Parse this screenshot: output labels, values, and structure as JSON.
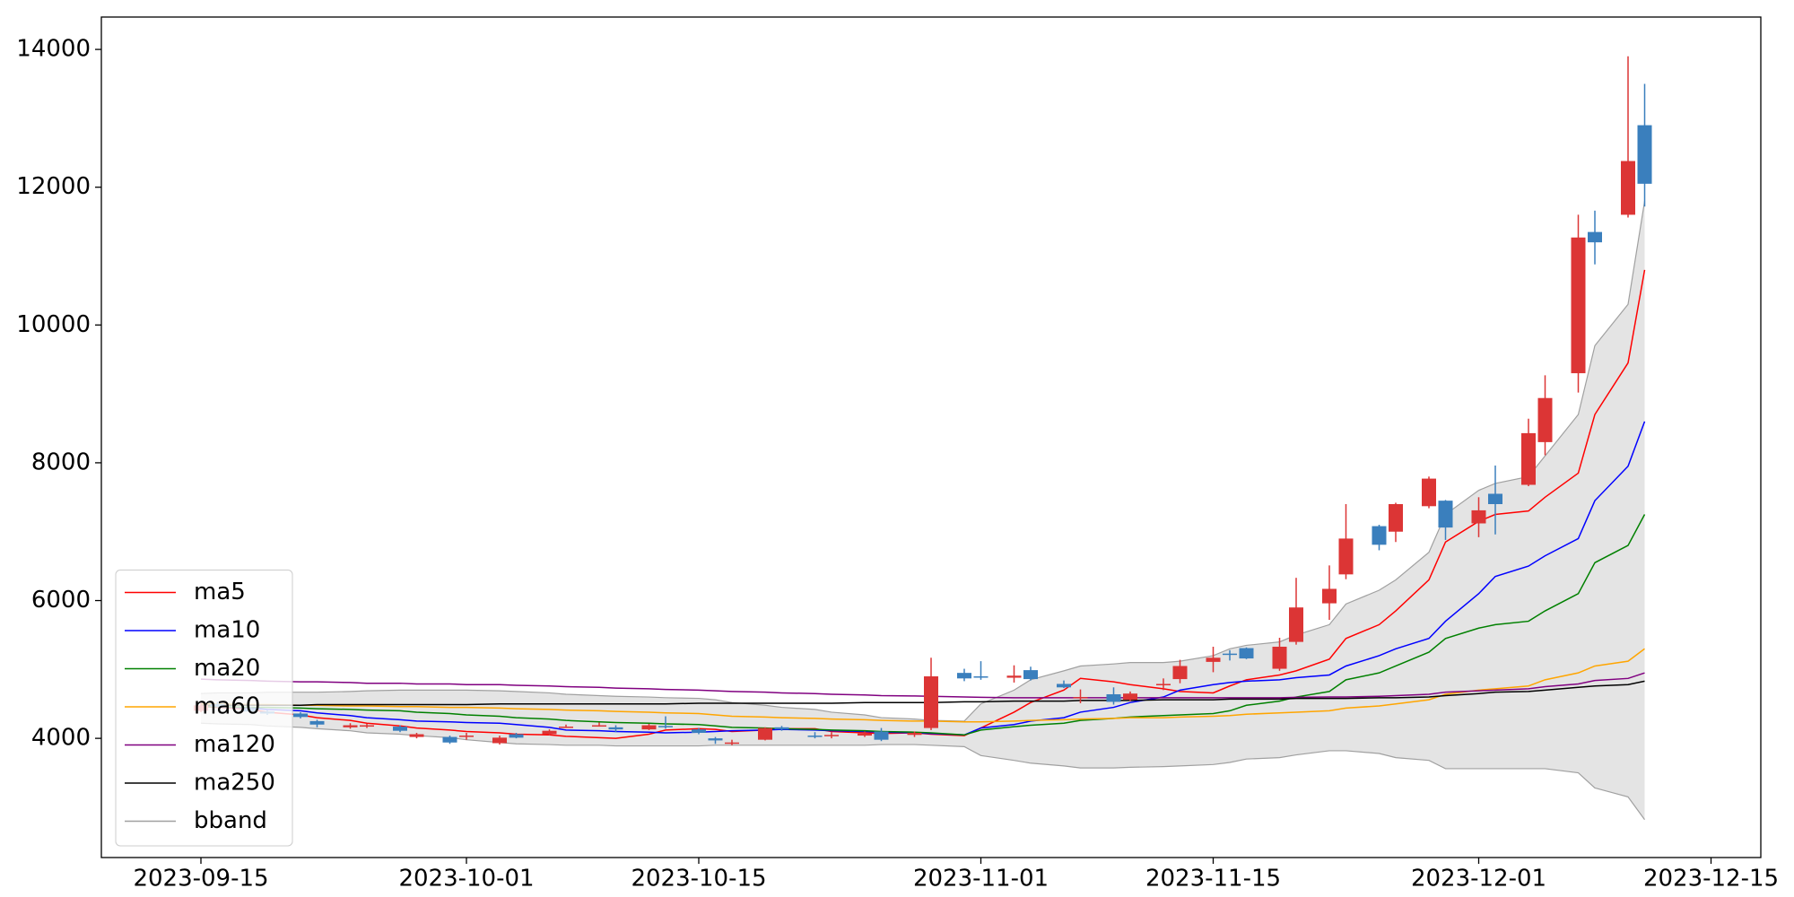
{
  "chart_data": {
    "type": "candlestick",
    "x": [
      "2023-09-15",
      "2023-09-16",
      "2023-09-18",
      "2023-09-19",
      "2023-09-21",
      "2023-09-22",
      "2023-09-24",
      "2023-09-25",
      "2023-09-27",
      "2023-09-28",
      "2023-09-30",
      "2023-10-01",
      "2023-10-03",
      "2023-10-04",
      "2023-10-06",
      "2023-10-07",
      "2023-10-09",
      "2023-10-10",
      "2023-10-12",
      "2023-10-13",
      "2023-10-15",
      "2023-10-16",
      "2023-10-17",
      "2023-10-19",
      "2023-10-20",
      "2023-10-22",
      "2023-10-23",
      "2023-10-25",
      "2023-10-26",
      "2023-10-28",
      "2023-10-29",
      "2023-10-31",
      "2023-11-01",
      "2023-11-03",
      "2023-11-04",
      "2023-11-06",
      "2023-11-07",
      "2023-11-09",
      "2023-11-10",
      "2023-11-12",
      "2023-11-13",
      "2023-11-15",
      "2023-11-16",
      "2023-11-17",
      "2023-11-19",
      "2023-11-20",
      "2023-11-22",
      "2023-11-23",
      "2023-11-25",
      "2023-11-26",
      "2023-11-28",
      "2023-11-29",
      "2023-12-01",
      "2023-12-02",
      "2023-12-04",
      "2023-12-05",
      "2023-12-07",
      "2023-12-08",
      "2023-12-10",
      "2023-12-11"
    ],
    "open": [
      4400,
      4500,
      4430,
      4390,
      4360,
      4250,
      4160,
      4170,
      4170,
      4020,
      4020,
      4030,
      3930,
      4060,
      4060,
      4160,
      4180,
      4160,
      4130,
      4180,
      4130,
      4000,
      3930,
      3980,
      4160,
      4040,
      4040,
      4040,
      4100,
      4050,
      4150,
      4950,
      4900,
      4880,
      4990,
      4790,
      4590,
      4640,
      4560,
      4770,
      4860,
      5110,
      5230,
      5310,
      5010,
      5400,
      5960,
      6380,
      7080,
      7000,
      7370,
      7450,
      7120,
      7550,
      7680,
      8300,
      9300,
      11350,
      11600,
      12900
    ],
    "high": [
      4520,
      4530,
      4460,
      4410,
      4380,
      4270,
      4220,
      4210,
      4190,
      4080,
      4040,
      4080,
      4040,
      4080,
      4130,
      4200,
      4230,
      4190,
      4210,
      4320,
      4150,
      4020,
      3980,
      4160,
      4180,
      4090,
      4090,
      4100,
      4150,
      4100,
      5170,
      5010,
      5120,
      5060,
      5040,
      4840,
      4710,
      4740,
      4680,
      4870,
      5140,
      5330,
      5280,
      5320,
      5460,
      6330,
      6510,
      7400,
      7100,
      7420,
      7800,
      7460,
      7500,
      7960,
      8640,
      9270,
      11600,
      11660,
      13900,
      13500
    ],
    "low": [
      4380,
      4450,
      4380,
      4340,
      4290,
      4160,
      4140,
      4150,
      4090,
      4000,
      3920,
      3980,
      3910,
      4000,
      4040,
      4150,
      4170,
      4090,
      4120,
      4140,
      4060,
      3920,
      3900,
      3970,
      4110,
      4000,
      4000,
      4020,
      3960,
      4020,
      4120,
      4830,
      4850,
      4810,
      4840,
      4730,
      4510,
      4490,
      4540,
      4700,
      4800,
      4960,
      5130,
      5150,
      4980,
      5360,
      5720,
      6310,
      6730,
      6850,
      7340,
      6880,
      6920,
      6960,
      7660,
      8110,
      9020,
      10880,
      11560,
      11720
    ],
    "close": [
      4480,
      4460,
      4390,
      4360,
      4310,
      4200,
      4190,
      4190,
      4110,
      4060,
      3940,
      4040,
      4010,
      4010,
      4110,
      4170,
      4190,
      4130,
      4190,
      4170,
      4080,
      3970,
      3940,
      4150,
      4130,
      4030,
      4050,
      4070,
      3980,
      4080,
      4900,
      4870,
      4890,
      4910,
      4860,
      4740,
      4600,
      4530,
      4650,
      4790,
      5050,
      5170,
      5220,
      5160,
      5330,
      5900,
      6170,
      6900,
      6810,
      7400,
      7770,
      7060,
      7310,
      7400,
      8430,
      8940,
      11270,
      11200,
      12380,
      12050
    ],
    "up_color": "#dc3535",
    "down_color": "#3a7fbd",
    "series": [
      {
        "name": "ma5",
        "color": "#ff0000",
        "values": [
          4460,
          4450,
          4420,
          4380,
          4340,
          4300,
          4260,
          4220,
          4180,
          4150,
          4120,
          4100,
          4080,
          4060,
          4050,
          4030,
          4010,
          4000,
          4060,
          4120,
          4140,
          4130,
          4100,
          4120,
          4140,
          4140,
          4100,
          4080,
          4070,
          4080,
          4060,
          4040,
          4150,
          4380,
          4520,
          4700,
          4870,
          4820,
          4780,
          4720,
          4680,
          4660,
          4760,
          4850,
          4920,
          4980,
          5150,
          5450,
          5650,
          5850,
          6300,
          6850,
          7150,
          7250,
          7300,
          7500,
          7850,
          8700,
          9450,
          10800
        ]
      },
      {
        "name": "ma10",
        "color": "#0000ff",
        "values": [
          4470,
          4460,
          4440,
          4420,
          4400,
          4370,
          4330,
          4300,
          4270,
          4250,
          4240,
          4230,
          4220,
          4200,
          4160,
          4120,
          4110,
          4100,
          4090,
          4080,
          4090,
          4100,
          4110,
          4120,
          4130,
          4120,
          4110,
          4100,
          4090,
          4080,
          4070,
          4050,
          4150,
          4200,
          4250,
          4300,
          4380,
          4450,
          4520,
          4600,
          4700,
          4780,
          4810,
          4830,
          4850,
          4880,
          4920,
          5050,
          5200,
          5300,
          5450,
          5700,
          6100,
          6350,
          6500,
          6650,
          6900,
          7450,
          7950,
          8600
        ]
      },
      {
        "name": "ma20",
        "color": "#008000",
        "values": [
          4460,
          4460,
          4450,
          4450,
          4440,
          4430,
          4420,
          4410,
          4400,
          4380,
          4360,
          4340,
          4320,
          4300,
          4280,
          4260,
          4240,
          4230,
          4220,
          4210,
          4200,
          4180,
          4160,
          4150,
          4140,
          4130,
          4120,
          4110,
          4100,
          4090,
          4080,
          4050,
          4120,
          4170,
          4190,
          4220,
          4260,
          4290,
          4310,
          4330,
          4340,
          4360,
          4400,
          4480,
          4540,
          4600,
          4680,
          4850,
          4950,
          5050,
          5250,
          5450,
          5600,
          5650,
          5700,
          5850,
          6100,
          6550,
          6800,
          7250
        ]
      },
      {
        "name": "ma60",
        "color": "#ffa500",
        "values": [
          4500,
          4500,
          4490,
          4490,
          4480,
          4480,
          4470,
          4470,
          4460,
          4460,
          4450,
          4450,
          4440,
          4430,
          4420,
          4410,
          4400,
          4390,
          4380,
          4370,
          4360,
          4340,
          4320,
          4310,
          4300,
          4290,
          4280,
          4270,
          4260,
          4250,
          4250,
          4240,
          4240,
          4250,
          4260,
          4270,
          4280,
          4290,
          4300,
          4300,
          4310,
          4320,
          4330,
          4350,
          4370,
          4380,
          4400,
          4440,
          4470,
          4500,
          4560,
          4640,
          4700,
          4720,
          4760,
          4850,
          4950,
          5050,
          5120,
          5300
        ]
      },
      {
        "name": "ma120",
        "color": "#800080",
        "values": [
          4860,
          4850,
          4840,
          4830,
          4820,
          4820,
          4810,
          4800,
          4800,
          4790,
          4790,
          4780,
          4780,
          4770,
          4760,
          4750,
          4740,
          4730,
          4720,
          4710,
          4700,
          4690,
          4680,
          4670,
          4660,
          4650,
          4640,
          4630,
          4620,
          4615,
          4610,
          4600,
          4595,
          4590,
          4590,
          4590,
          4590,
          4590,
          4590,
          4590,
          4590,
          4590,
          4590,
          4590,
          4590,
          4595,
          4600,
          4600,
          4610,
          4620,
          4640,
          4670,
          4690,
          4700,
          4720,
          4750,
          4790,
          4840,
          4870,
          4950
        ]
      },
      {
        "name": "ma250",
        "color": "#000000",
        "values": [
          4480,
          4480,
          4480,
          4480,
          4480,
          4490,
          4490,
          4490,
          4490,
          4490,
          4490,
          4490,
          4500,
          4500,
          4500,
          4500,
          4500,
          4500,
          4500,
          4500,
          4510,
          4510,
          4510,
          4510,
          4510,
          4510,
          4510,
          4520,
          4520,
          4520,
          4520,
          4530,
          4530,
          4540,
          4540,
          4540,
          4550,
          4550,
          4550,
          4560,
          4560,
          4560,
          4570,
          4570,
          4570,
          4580,
          4580,
          4580,
          4590,
          4590,
          4600,
          4620,
          4650,
          4670,
          4680,
          4700,
          4740,
          4760,
          4780,
          4830
        ]
      }
    ],
    "bband": {
      "name": "bband",
      "color": "#a0a0a0",
      "fill": "#e4e4e4",
      "upper": [
        4650,
        4660,
        4660,
        4670,
        4670,
        4670,
        4680,
        4690,
        4700,
        4700,
        4700,
        4700,
        4690,
        4680,
        4660,
        4640,
        4620,
        4610,
        4600,
        4590,
        4580,
        4560,
        4520,
        4480,
        4450,
        4420,
        4380,
        4340,
        4300,
        4280,
        4260,
        4250,
        4500,
        4700,
        4850,
        4980,
        5050,
        5080,
        5100,
        5100,
        5120,
        5200,
        5300,
        5350,
        5400,
        5500,
        5650,
        5950,
        6150,
        6300,
        6700,
        7250,
        7600,
        7700,
        7800,
        8100,
        8700,
        9700,
        10300,
        11800
      ],
      "lower": [
        4220,
        4210,
        4200,
        4180,
        4160,
        4140,
        4110,
        4080,
        4060,
        4040,
        4010,
        3980,
        3940,
        3920,
        3910,
        3900,
        3900,
        3890,
        3890,
        3890,
        3890,
        3900,
        3900,
        3900,
        3900,
        3900,
        3900,
        3900,
        3910,
        3910,
        3900,
        3880,
        3750,
        3680,
        3640,
        3600,
        3570,
        3570,
        3580,
        3590,
        3600,
        3620,
        3650,
        3700,
        3720,
        3760,
        3820,
        3820,
        3780,
        3720,
        3680,
        3560,
        3560,
        3560,
        3560,
        3560,
        3500,
        3280,
        3150,
        2820
      ]
    },
    "xlim": [
      "2023-09-09",
      "2023-12-18"
    ],
    "xticks": [
      "2023-09-15",
      "2023-10-01",
      "2023-10-15",
      "2023-11-01",
      "2023-11-15",
      "2023-12-01",
      "2023-12-15"
    ],
    "ylim": [
      2270,
      14470
    ],
    "yticks": [
      4000,
      6000,
      8000,
      10000,
      12000,
      14000
    ],
    "legend": "lower left"
  }
}
